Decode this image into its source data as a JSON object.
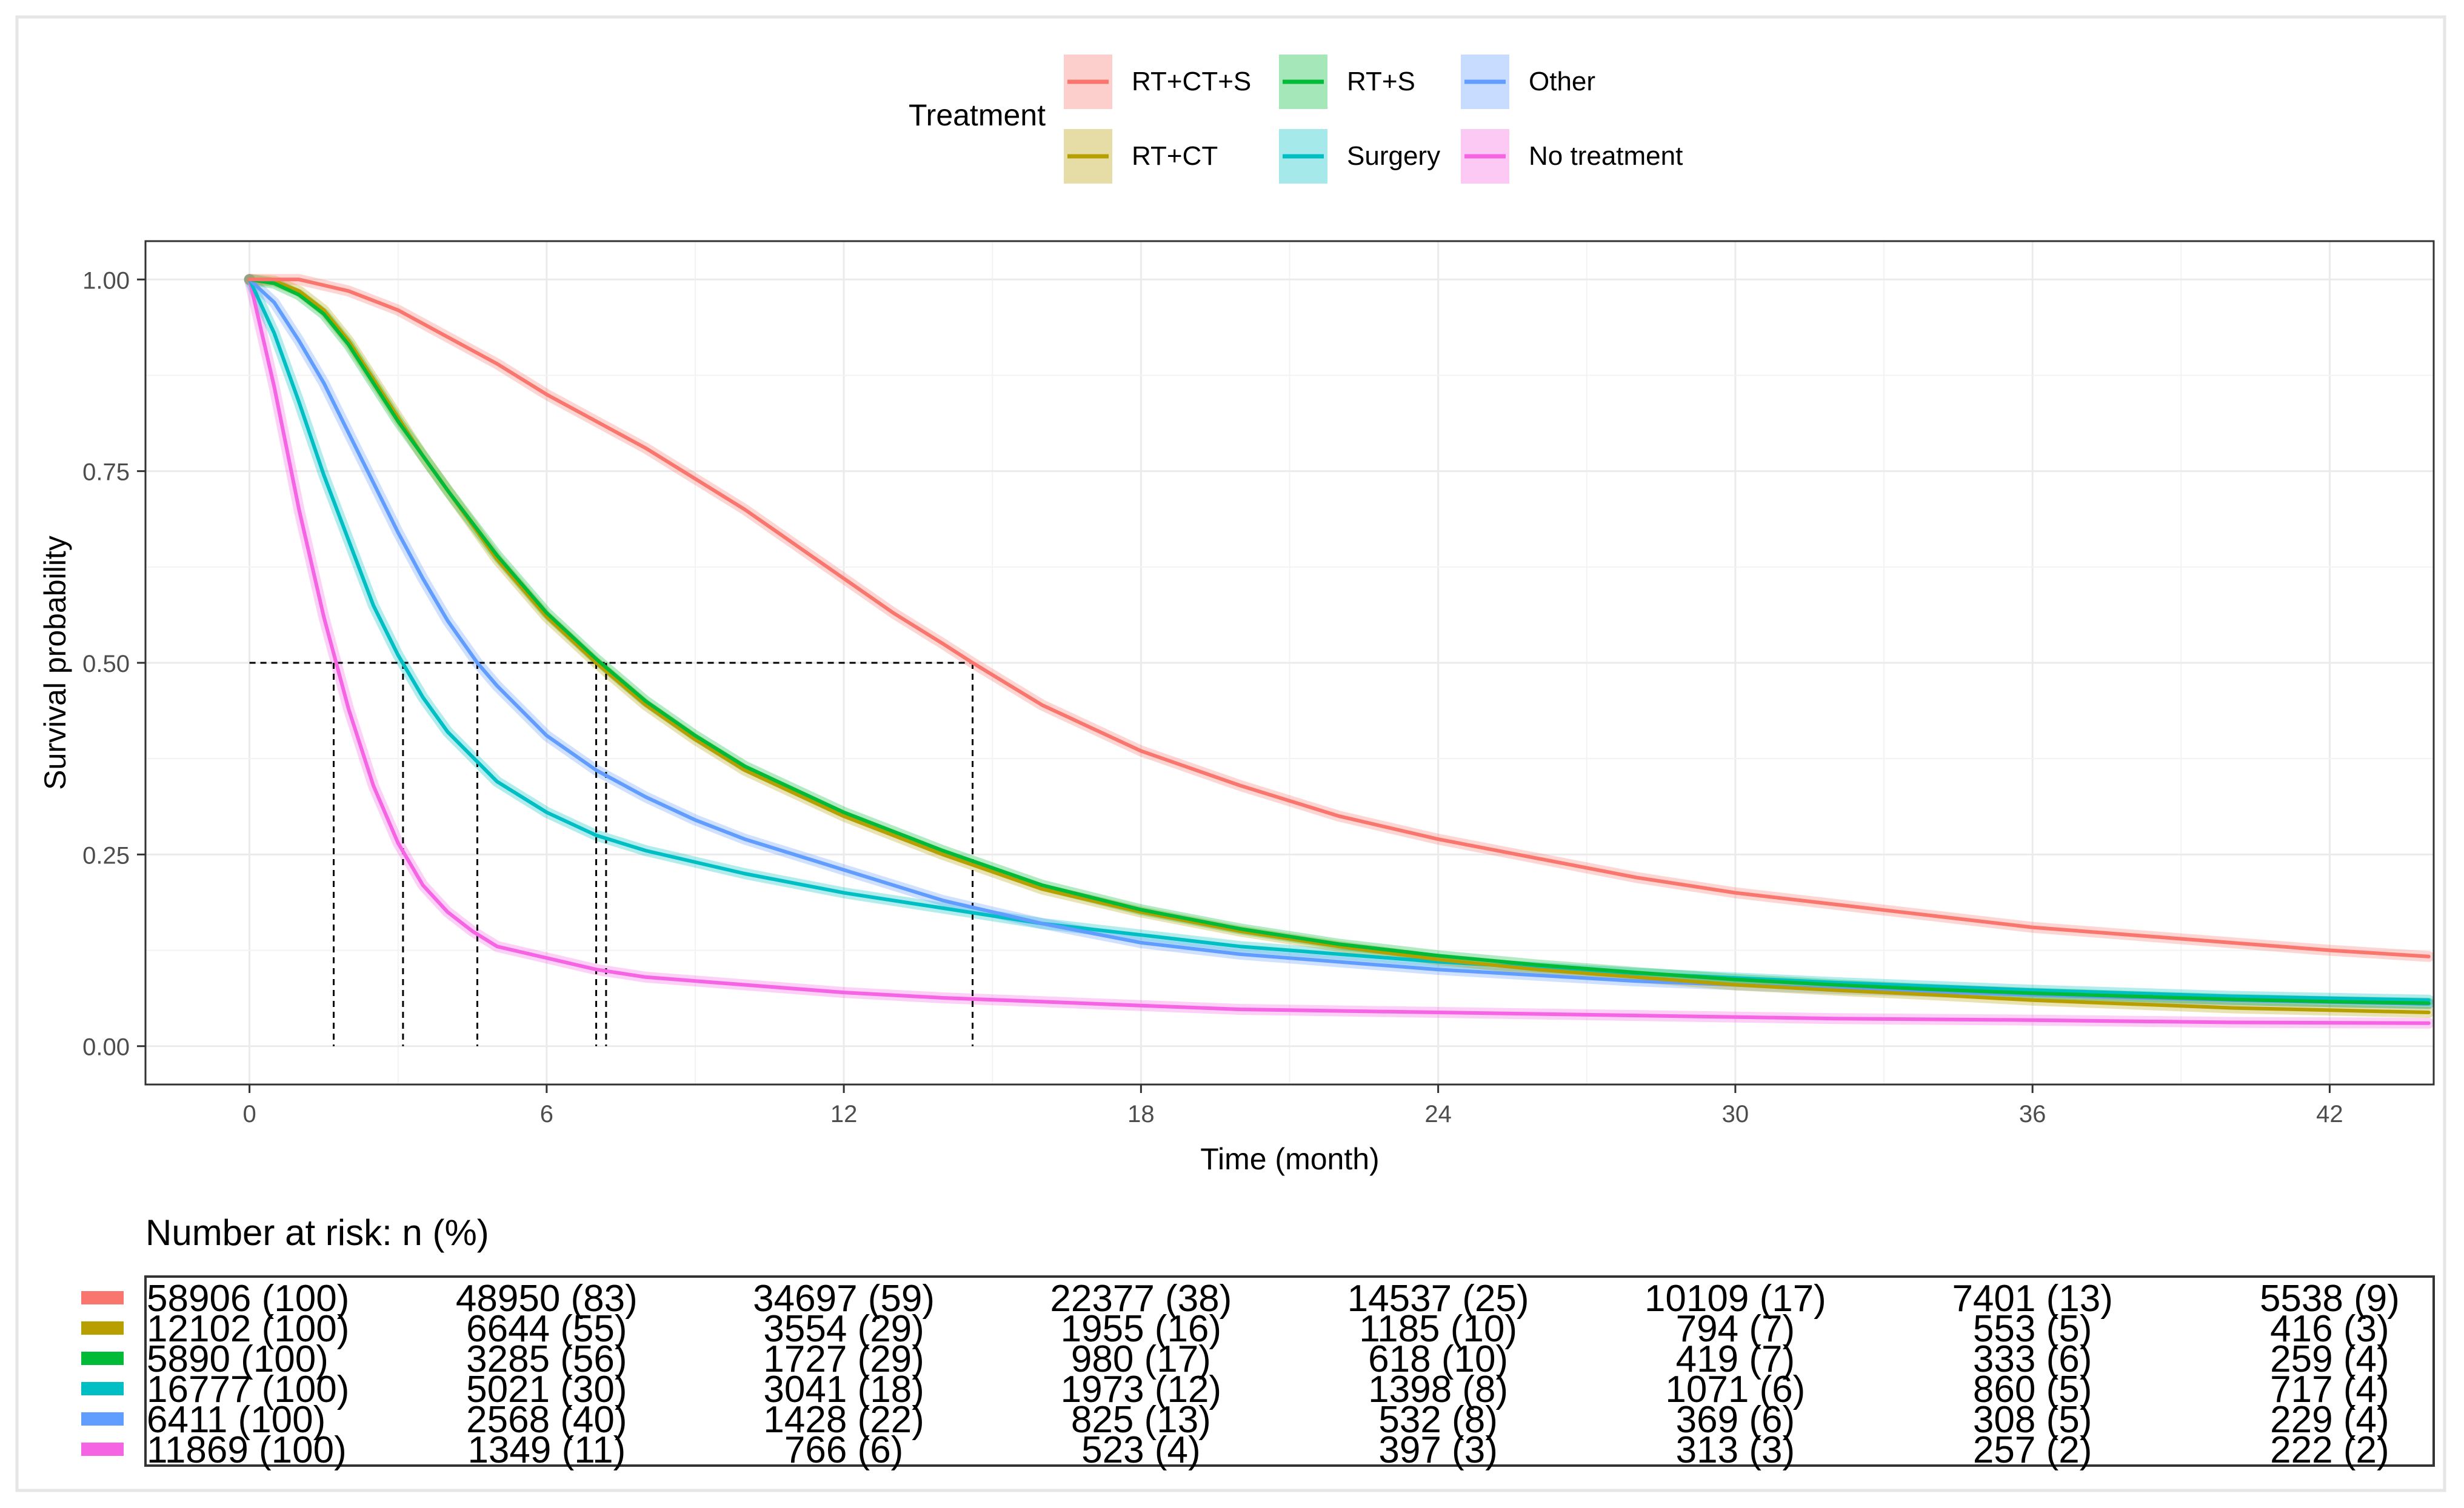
{
  "chart_data": {
    "type": "line",
    "subtype": "kaplan-meier survival curves",
    "xlabel": "Time (month)",
    "ylabel": "Survival probability",
    "xlim": [
      -2.1,
      44.1
    ],
    "ylim": [
      -0.05,
      1.05
    ],
    "xticks": [
      0,
      6,
      12,
      18,
      24,
      30,
      36,
      42
    ],
    "xtick_labels": [
      "0",
      "6",
      "12",
      "18",
      "24",
      "30",
      "36",
      "42"
    ],
    "yticks": [
      0.0,
      0.25,
      0.5,
      0.75,
      1.0
    ],
    "ytick_labels": [
      "0.00",
      "0.25",
      "0.50",
      "0.75",
      "1.00"
    ],
    "grid": true,
    "legend": {
      "title": "Treatment",
      "position": "top",
      "order": [
        "RT+CT+S",
        "RT+CT",
        "RT+S",
        "Surgery",
        "Other",
        "No treatment"
      ]
    },
    "median_reference_y": 0.5,
    "series": [
      {
        "name": "RT+CT+S",
        "color": "#F8766D",
        "median": 14.6,
        "x": [
          0,
          1,
          2,
          3,
          4,
          5,
          6,
          7,
          8,
          9,
          10,
          11,
          12,
          13,
          14,
          14.6,
          16,
          18,
          20,
          22,
          24,
          26,
          28,
          30,
          32,
          34,
          36,
          38,
          40,
          42,
          44
        ],
        "y": [
          1.0,
          1.0,
          0.985,
          0.96,
          0.925,
          0.89,
          0.85,
          0.815,
          0.78,
          0.74,
          0.7,
          0.655,
          0.61,
          0.565,
          0.525,
          0.5,
          0.445,
          0.385,
          0.34,
          0.3,
          0.27,
          0.245,
          0.22,
          0.2,
          0.185,
          0.17,
          0.155,
          0.145,
          0.135,
          0.125,
          0.117
        ]
      },
      {
        "name": "RT+CT",
        "color": "#B79F00",
        "median": 7.0,
        "x": [
          0,
          0.5,
          1,
          1.5,
          2,
          2.5,
          3,
          3.5,
          4,
          5,
          6,
          7,
          8,
          9,
          10,
          11,
          12,
          14,
          16,
          18,
          20,
          22,
          24,
          26,
          28,
          30,
          32,
          34,
          36,
          38,
          40,
          42,
          44
        ],
        "y": [
          1.0,
          0.998,
          0.985,
          0.96,
          0.92,
          0.87,
          0.82,
          0.77,
          0.725,
          0.635,
          0.56,
          0.5,
          0.445,
          0.4,
          0.36,
          0.33,
          0.3,
          0.25,
          0.205,
          0.175,
          0.15,
          0.13,
          0.113,
          0.1,
          0.09,
          0.08,
          0.073,
          0.067,
          0.06,
          0.055,
          0.05,
          0.047,
          0.044
        ]
      },
      {
        "name": "RT+S",
        "color": "#00BA38",
        "median": 7.2,
        "x": [
          0,
          0.5,
          1,
          1.5,
          2,
          2.5,
          3,
          3.5,
          4,
          5,
          6,
          7,
          8,
          9,
          10,
          11,
          12,
          14,
          16,
          18,
          20,
          22,
          24,
          26,
          28,
          30,
          32,
          34,
          36,
          38,
          40,
          42,
          44
        ],
        "y": [
          1.0,
          0.995,
          0.98,
          0.955,
          0.915,
          0.865,
          0.815,
          0.77,
          0.725,
          0.64,
          0.565,
          0.505,
          0.45,
          0.405,
          0.365,
          0.335,
          0.305,
          0.255,
          0.21,
          0.178,
          0.153,
          0.133,
          0.118,
          0.106,
          0.096,
          0.087,
          0.08,
          0.074,
          0.069,
          0.065,
          0.061,
          0.058,
          0.056
        ]
      },
      {
        "name": "Surgery",
        "color": "#00BFC4",
        "median": 3.1,
        "x": [
          0,
          0.5,
          1,
          1.5,
          2,
          2.5,
          3,
          3.5,
          4,
          5,
          6,
          7,
          8,
          9,
          10,
          12,
          14,
          16,
          18,
          20,
          24,
          28,
          32,
          36,
          40,
          44
        ],
        "y": [
          1.0,
          0.93,
          0.84,
          0.745,
          0.66,
          0.575,
          0.51,
          0.455,
          0.41,
          0.345,
          0.305,
          0.275,
          0.255,
          0.24,
          0.225,
          0.2,
          0.18,
          0.16,
          0.145,
          0.13,
          0.11,
          0.095,
          0.083,
          0.073,
          0.065,
          0.06
        ]
      },
      {
        "name": "Other",
        "color": "#619CFF",
        "median": 4.6,
        "x": [
          0,
          0.5,
          1,
          1.5,
          2,
          2.5,
          3,
          3.5,
          4,
          4.6,
          5,
          6,
          7,
          8,
          9,
          10,
          12,
          14,
          16,
          18,
          20,
          24,
          28,
          32,
          36,
          40,
          44
        ],
        "y": [
          1.0,
          0.97,
          0.92,
          0.865,
          0.8,
          0.735,
          0.67,
          0.61,
          0.555,
          0.5,
          0.47,
          0.405,
          0.36,
          0.325,
          0.295,
          0.27,
          0.23,
          0.19,
          0.16,
          0.135,
          0.12,
          0.1,
          0.085,
          0.075,
          0.067,
          0.06,
          0.055
        ]
      },
      {
        "name": "No treatment",
        "color": "#F564E3",
        "median": 1.7,
        "x": [
          0,
          0.5,
          1,
          1.5,
          2,
          2.5,
          3,
          3.5,
          4,
          4.5,
          5,
          6,
          7,
          8,
          10,
          12,
          14,
          16,
          18,
          20,
          24,
          28,
          32,
          36,
          40,
          44
        ],
        "y": [
          1.0,
          0.86,
          0.7,
          0.56,
          0.44,
          0.34,
          0.265,
          0.21,
          0.175,
          0.15,
          0.13,
          0.115,
          0.1,
          0.09,
          0.08,
          0.07,
          0.063,
          0.058,
          0.053,
          0.048,
          0.044,
          0.04,
          0.036,
          0.034,
          0.031,
          0.03
        ]
      }
    ],
    "risk_table": {
      "title": "Number at risk: n (%)",
      "times": [
        0,
        6,
        12,
        18,
        24,
        30,
        36,
        42
      ],
      "rows": [
        {
          "name": "RT+CT+S",
          "values": [
            "58906 (100)",
            "48950 (83)",
            "34697 (59)",
            "22377 (38)",
            "14537 (25)",
            "10109 (17)",
            "7401 (13)",
            "5538 (9)"
          ]
        },
        {
          "name": "RT+CT",
          "values": [
            "12102 (100)",
            "6644 (55)",
            "3554 (29)",
            "1955 (16)",
            "1185 (10)",
            "794 (7)",
            "553 (5)",
            "416 (3)"
          ]
        },
        {
          "name": "RT+S",
          "values": [
            "5890 (100)",
            "3285 (56)",
            "1727 (29)",
            "980 (17)",
            "618 (10)",
            "419 (7)",
            "333 (6)",
            "259 (4)"
          ]
        },
        {
          "name": "Surgery",
          "values": [
            "16777 (100)",
            "5021 (30)",
            "3041 (18)",
            "1973 (12)",
            "1398 (8)",
            "1071 (6)",
            "860 (5)",
            "717 (4)"
          ]
        },
        {
          "name": "Other",
          "values": [
            "6411 (100)",
            "2568 (40)",
            "1428 (22)",
            "825 (13)",
            "532 (8)",
            "369 (6)",
            "308 (5)",
            "229 (4)"
          ]
        },
        {
          "name": "No treatment",
          "values": [
            "11869 (100)",
            "1349 (11)",
            "766 (6)",
            "523 (4)",
            "397 (3)",
            "313 (3)",
            "257 (2)",
            "222 (2)"
          ]
        }
      ]
    }
  }
}
